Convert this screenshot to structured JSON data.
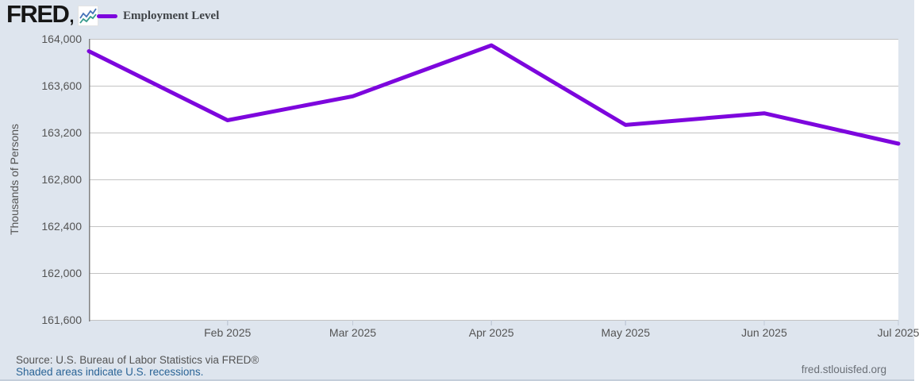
{
  "header": {
    "logo_text": "FRED",
    "legend": {
      "series_label": "Employment Level",
      "series_color": "#7d06dd"
    }
  },
  "chart_data": {
    "type": "line",
    "title": "Employment Level",
    "ylabel": "Thousands of Persons",
    "x": [
      "2025-01",
      "2025-02",
      "2025-03",
      "2025-04",
      "2025-05",
      "2025-06",
      "2025-07"
    ],
    "values": [
      163895,
      163305,
      163510,
      163945,
      163265,
      163365,
      163105
    ],
    "ylim": [
      161600,
      164000
    ],
    "ytick_step": 400,
    "ytick_labels": [
      "164,000",
      "163,600",
      "163,200",
      "162,800",
      "162,400",
      "162,000",
      "161,600"
    ],
    "xtick_labels": [
      "Feb 2025",
      "Mar 2025",
      "Apr 2025",
      "May 2025",
      "Jun 2025",
      "Jul 2025"
    ],
    "grid": "horizontal",
    "legend_position": "top-left",
    "line_color": "#7d06dd",
    "colors": {
      "background": "#dee5ee",
      "plot_background": "#ffffff",
      "gridline": "#c3c3c3",
      "axis_left": "#808080",
      "tick": "#c3cbd8",
      "label_text": "#545454"
    }
  },
  "logo_icon": {
    "name": "fred-mini-chart-icon",
    "line1_color": "#4472b8",
    "line2_color": "#379b8d"
  },
  "footer": {
    "source_text": "Source: U.S. Bureau of Labor Statistics via FRED®",
    "recessions_link": "Shaded areas indicate U.S. recessions.",
    "site_link": "fred.stlouisfed.org"
  }
}
